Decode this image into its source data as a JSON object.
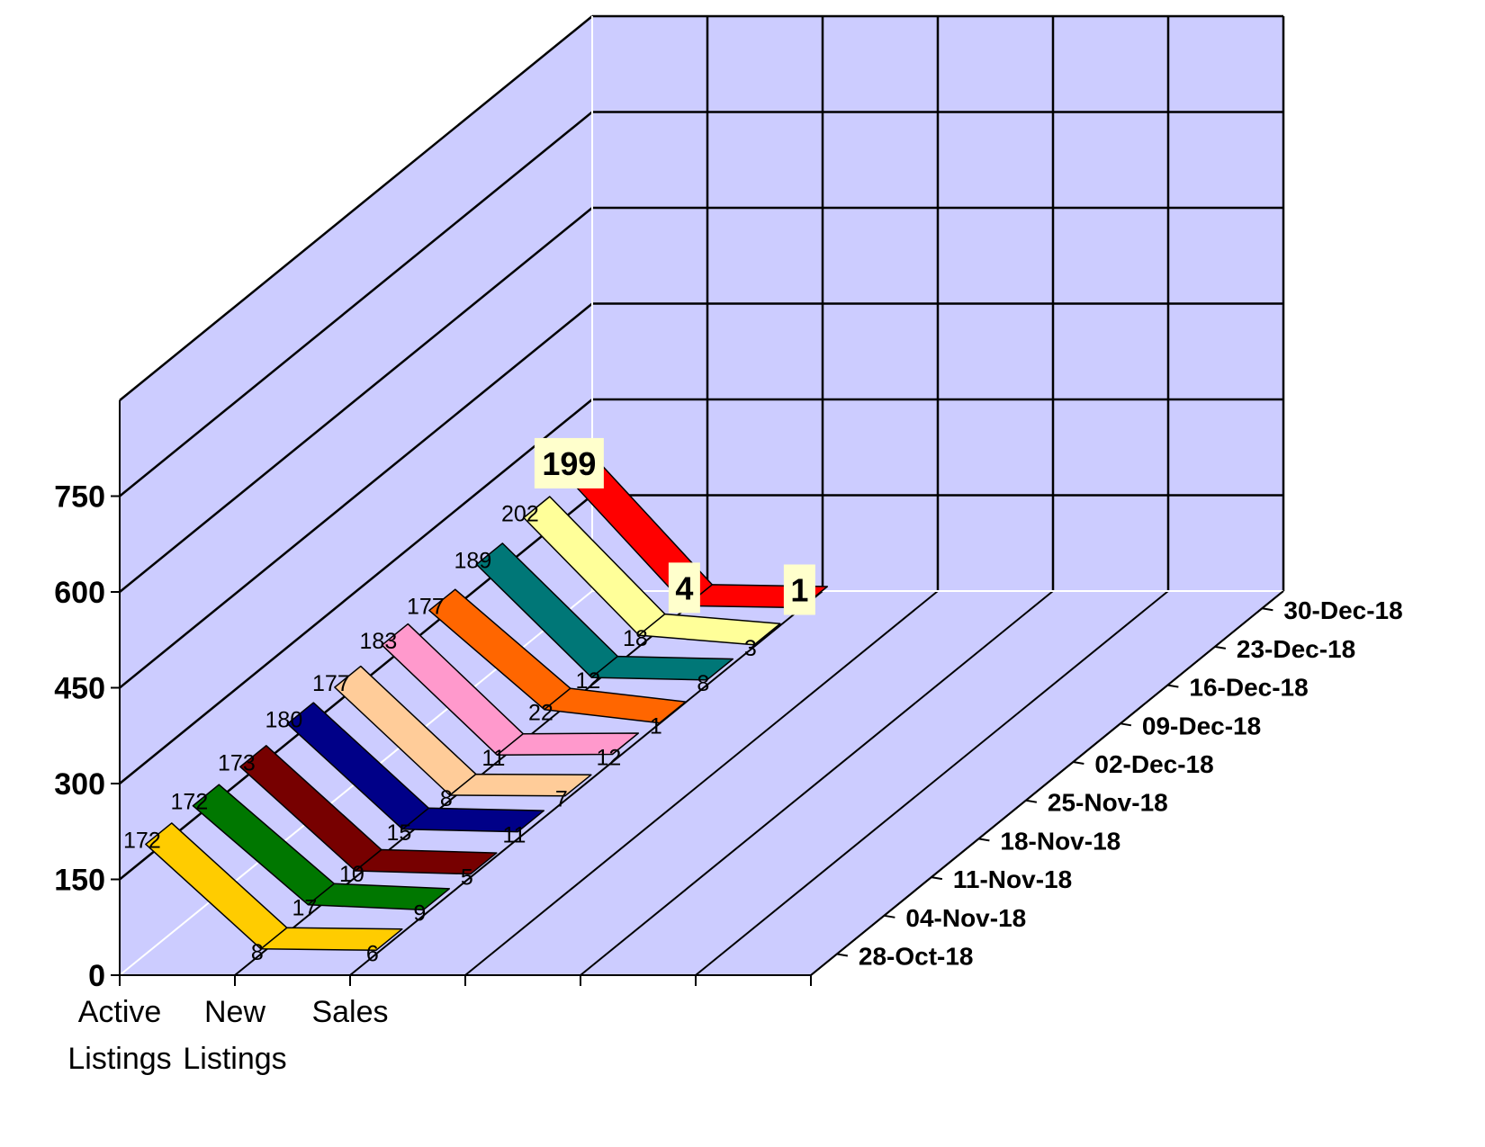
{
  "chart_data": {
    "type": "line",
    "view": "3d",
    "categories": [
      "Active Listings",
      "New Listings",
      "Sales"
    ],
    "category_label_lines": [
      [
        "Active",
        "Listings"
      ],
      [
        "New",
        "Listings"
      ],
      [
        "Sales"
      ]
    ],
    "y_ticks": [
      0,
      150,
      300,
      450,
      600,
      750
    ],
    "ylim": [
      0,
      900
    ],
    "grid": true,
    "series": [
      {
        "name": "28-Oct-18",
        "values": [
          172,
          8,
          6
        ],
        "color": "#ffcc00"
      },
      {
        "name": "04-Nov-18",
        "values": [
          172,
          17,
          9
        ],
        "color": "#007700"
      },
      {
        "name": "11-Nov-18",
        "values": [
          173,
          10,
          5
        ],
        "color": "#770000"
      },
      {
        "name": "18-Nov-18",
        "values": [
          180,
          15,
          11
        ],
        "color": "#000088"
      },
      {
        "name": "25-Nov-18",
        "values": [
          177,
          8,
          7
        ],
        "color": "#ffcc99"
      },
      {
        "name": "02-Dec-18",
        "values": [
          183,
          11,
          12
        ],
        "color": "#ff99cc"
      },
      {
        "name": "09-Dec-18",
        "values": [
          177,
          22,
          1
        ],
        "color": "#ff6600"
      },
      {
        "name": "16-Dec-18",
        "values": [
          189,
          12,
          8
        ],
        "color": "#007777"
      },
      {
        "name": "23-Dec-18",
        "values": [
          202,
          18,
          3
        ],
        "color": "#ffff99"
      },
      {
        "name": "30-Dec-18",
        "values": [
          199,
          4,
          1
        ],
        "color": "#ff0000"
      }
    ],
    "colors": {
      "wall": "#ccccff",
      "grid_back": "#000000",
      "grid_floor": "#ffffff",
      "axis": "#000000",
      "callout_bg": "#ffffcc"
    }
  }
}
